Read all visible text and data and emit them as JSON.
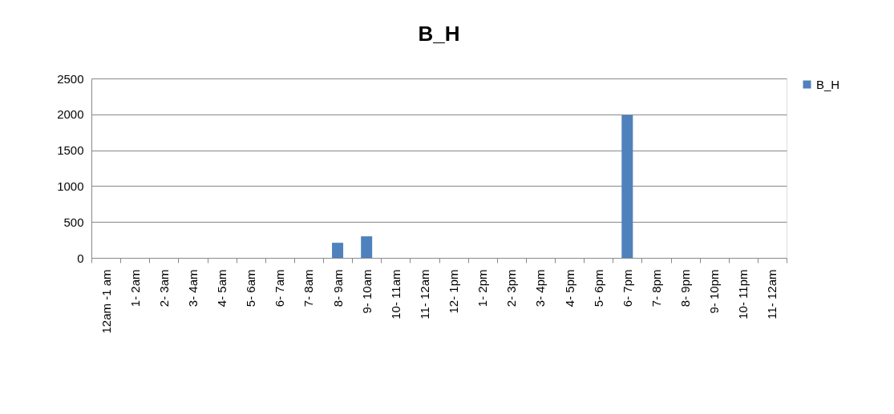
{
  "chart_data": {
    "type": "bar",
    "title": "B_H",
    "categories": [
      "12am -1 am",
      "1- 2am",
      "2- 3am",
      "3- 4am",
      "4- 5am",
      "5- 6am",
      "6- 7am",
      "7- 8am",
      "8- 9am",
      "9- 10am",
      "10- 11am",
      "11- 12am",
      "12- 1pm",
      "1- 2pm",
      "2- 3pm",
      "3- 4pm",
      "4- 5pm",
      "5- 6pm",
      "6- 7pm",
      "7- 8pm",
      "8- 9pm",
      "9- 10pm",
      "10- 11pm",
      "11- 12am"
    ],
    "series": [
      {
        "name": "B_H",
        "color": "#4f81bd",
        "values": [
          0,
          0,
          0,
          0,
          0,
          0,
          0,
          0,
          210,
          300,
          0,
          0,
          0,
          0,
          0,
          0,
          0,
          0,
          1990,
          0,
          0,
          0,
          0,
          0
        ]
      }
    ],
    "ylim": [
      0,
      2500
    ],
    "yticks": [
      0,
      500,
      1000,
      1500,
      2000,
      2500
    ],
    "grid": "y",
    "legend": "right"
  }
}
